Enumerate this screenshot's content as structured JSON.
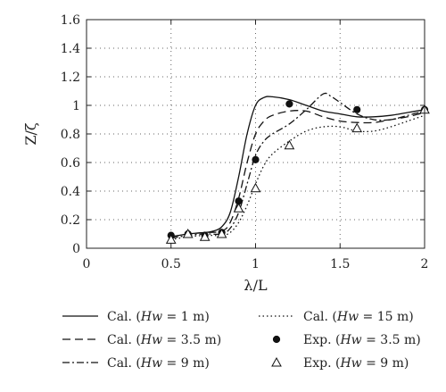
{
  "chart_data": {
    "type": "line",
    "title": "",
    "xlabel": "λ/L",
    "ylabel": "Z/ζ",
    "xlim": [
      0,
      2
    ],
    "ylim": [
      0,
      1.6
    ],
    "xticks": [
      0,
      0.5,
      1,
      1.5,
      2
    ],
    "xtick_labels": [
      "0",
      "0.5",
      "1",
      "1.5",
      "2"
    ],
    "yticks": [
      0,
      0.2,
      0.4,
      0.6,
      0.8,
      1,
      1.2,
      1.4,
      1.6
    ],
    "ytick_labels": [
      "0",
      "0.2",
      "0.4",
      "0.6",
      "0.8",
      "1",
      "1.2",
      "1.4",
      "1.6"
    ],
    "grid": true,
    "legend_position": "bottom",
    "series": [
      {
        "name": "Cal. (Hw = 1 m)",
        "legend_pre": "Cal. (",
        "legend_var": "Hw",
        "legend_post": " = 1 m)",
        "style": "solid",
        "marker": "none",
        "x": [
          0.5,
          0.6,
          0.7,
          0.75,
          0.8,
          0.85,
          0.9,
          0.95,
          1.0,
          1.05,
          1.1,
          1.2,
          1.3,
          1.4,
          1.5,
          1.6,
          1.7,
          1.8,
          1.9,
          2.0
        ],
        "y": [
          0.08,
          0.1,
          0.11,
          0.12,
          0.15,
          0.25,
          0.5,
          0.8,
          1.0,
          1.055,
          1.06,
          1.04,
          1.0,
          0.96,
          0.94,
          0.92,
          0.92,
          0.93,
          0.95,
          0.97
        ]
      },
      {
        "name": "Cal. (Hw = 3.5 m)",
        "legend_pre": "Cal. (",
        "legend_var": "Hw",
        "legend_post": " = 3.5 m)",
        "style": "dashed",
        "marker": "none",
        "x": [
          0.5,
          0.6,
          0.7,
          0.8,
          0.85,
          0.9,
          0.95,
          1.0,
          1.05,
          1.1,
          1.2,
          1.3,
          1.4,
          1.5,
          1.6,
          1.7,
          1.8,
          1.9,
          2.0
        ],
        "y": [
          0.08,
          0.1,
          0.11,
          0.12,
          0.18,
          0.35,
          0.6,
          0.8,
          0.89,
          0.93,
          0.96,
          0.96,
          0.92,
          0.89,
          0.88,
          0.88,
          0.9,
          0.92,
          0.95
        ]
      },
      {
        "name": "Cal. (Hw = 9 m)",
        "legend_pre": "Cal. (",
        "legend_var": "Hw",
        "legend_post": " = 9 m)",
        "style": "dashdot",
        "marker": "none",
        "x": [
          0.5,
          0.6,
          0.7,
          0.8,
          0.85,
          0.9,
          0.95,
          1.0,
          1.05,
          1.1,
          1.2,
          1.3,
          1.4,
          1.45,
          1.5,
          1.6,
          1.7,
          1.8,
          1.9,
          2.0
        ],
        "y": [
          0.07,
          0.09,
          0.1,
          0.1,
          0.14,
          0.25,
          0.45,
          0.65,
          0.75,
          0.8,
          0.87,
          0.97,
          1.08,
          1.06,
          1.02,
          0.94,
          0.9,
          0.9,
          0.93,
          0.96
        ]
      },
      {
        "name": "Cal. (Hw = 15 m)",
        "legend_pre": "Cal. (",
        "legend_var": "Hw",
        "legend_post": " = 15 m)",
        "style": "dotted",
        "marker": "none",
        "x": [
          0.5,
          0.6,
          0.7,
          0.8,
          0.85,
          0.9,
          0.95,
          1.0,
          1.05,
          1.1,
          1.2,
          1.3,
          1.4,
          1.5,
          1.6,
          1.7,
          1.8,
          1.9,
          2.0
        ],
        "y": [
          0.06,
          0.08,
          0.09,
          0.09,
          0.11,
          0.18,
          0.3,
          0.45,
          0.58,
          0.66,
          0.75,
          0.82,
          0.85,
          0.85,
          0.82,
          0.82,
          0.85,
          0.89,
          0.93
        ]
      },
      {
        "name": "Exp. (Hw = 3.5 m)",
        "legend_pre": "Exp. (",
        "legend_var": "Hw",
        "legend_post": " = 3.5 m)",
        "style": "none",
        "marker": "filled-circle",
        "x": [
          0.5,
          0.6,
          0.7,
          0.8,
          0.9,
          1.0,
          1.2,
          1.6,
          2.0
        ],
        "y": [
          0.09,
          0.1,
          0.09,
          0.11,
          0.33,
          0.62,
          1.01,
          0.97,
          0.97
        ]
      },
      {
        "name": "Exp. (Hw = 9 m)",
        "legend_pre": "Exp. (",
        "legend_var": "Hw",
        "legend_post": " = 9 m)",
        "style": "none",
        "marker": "open-triangle",
        "x": [
          0.5,
          0.6,
          0.7,
          0.8,
          0.9,
          1.0,
          1.2,
          1.6,
          2.0
        ],
        "y": [
          0.06,
          0.1,
          0.08,
          0.1,
          0.28,
          0.42,
          0.72,
          0.84,
          0.97
        ]
      }
    ]
  }
}
